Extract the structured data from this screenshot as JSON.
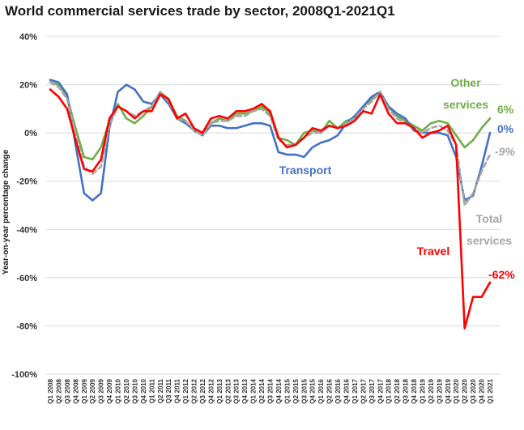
{
  "chart_data": {
    "type": "line",
    "title": "World commercial services trade by sector, 2008Q1-2021Q1",
    "ylabel": "Year-on-year percentage change",
    "xlabel": "",
    "ylim": [
      -100,
      40
    ],
    "yticks": [
      40,
      20,
      0,
      -20,
      -40,
      -60,
      -80,
      -100
    ],
    "ytick_labels": [
      "40%",
      "20%",
      "0%",
      "-20%",
      "-40%",
      "-60%",
      "-80%",
      "-100%"
    ],
    "grid": "horizontal",
    "categories": [
      "Q1 2008",
      "Q2 2008",
      "Q3 2008",
      "Q4 2008",
      "Q1 2009",
      "Q2 2009",
      "Q3 2009",
      "Q4 2009",
      "Q1 2010",
      "Q2 2010",
      "Q3 2010",
      "Q4 2010",
      "Q1 2011",
      "Q2 2011",
      "Q3 2011",
      "Q4 2011",
      "Q1 2012",
      "Q2 2012",
      "Q3 2012",
      "Q4 2012",
      "Q1 2013",
      "Q2 2013",
      "Q3 2013",
      "Q4 2013",
      "Q1 2014",
      "Q2 2014",
      "Q3 2014",
      "Q4 2014",
      "Q1 2015",
      "Q2 2015",
      "Q3 2015",
      "Q4 2015",
      "Q1 2016",
      "Q2 2016",
      "Q3 2016",
      "Q4 2016",
      "Q1 2017",
      "Q2 2017",
      "Q3 2017",
      "Q4 2017",
      "Q1 2018",
      "Q2 2018",
      "Q3 2018",
      "Q4 2018",
      "Q1 2019",
      "Q2 2019",
      "Q3 2019",
      "Q4 2019",
      "Q1 2020",
      "Q2 2020",
      "Q3 2020",
      "Q4 2020",
      "Q1 2021"
    ],
    "series": [
      {
        "name": "Other services",
        "color": "#70AD47",
        "values": [
          21,
          20,
          15,
          2,
          -10,
          -11,
          -6,
          5,
          12,
          6,
          4,
          7,
          11,
          17,
          14,
          7,
          5,
          1,
          -1,
          4,
          6,
          5,
          8,
          8,
          9,
          11,
          8,
          -2,
          -3,
          -5,
          0,
          1,
          0,
          5,
          2,
          5,
          6,
          11,
          14,
          17,
          11,
          7,
          5,
          3,
          1,
          4,
          5,
          4,
          -1,
          -6,
          -3,
          2,
          6
        ]
      },
      {
        "name": "Transport",
        "color": "#4472C4",
        "values": [
          22,
          21,
          16,
          -5,
          -25,
          -28,
          -25,
          2,
          17,
          20,
          18,
          13,
          12,
          16,
          12,
          6,
          4,
          1,
          -1,
          3,
          3,
          2,
          2,
          3,
          4,
          4,
          3,
          -8,
          -9,
          -9,
          -10,
          -6,
          -4,
          -3,
          -1,
          4,
          7,
          11,
          15,
          17,
          11,
          8,
          6,
          1,
          0,
          0,
          0,
          -1,
          -10,
          -28,
          -26,
          -14,
          0
        ]
      },
      {
        "name": "Total services",
        "color": "#A6A6A6",
        "dashed": true,
        "values": [
          21,
          19,
          14,
          0,
          -14,
          -17,
          -14,
          3,
          11,
          9,
          7,
          9,
          11,
          17,
          13,
          6,
          5,
          1,
          -1,
          4,
          5,
          5,
          7,
          7,
          9,
          10,
          7,
          -3,
          -5,
          -5,
          -2,
          0,
          0,
          3,
          2,
          4,
          6,
          10,
          13,
          17,
          10,
          6,
          4,
          2,
          0,
          2,
          3,
          1,
          -5,
          -30,
          -25,
          -16,
          -9
        ]
      },
      {
        "name": "Travel",
        "color": "#FF0000",
        "values": [
          18,
          15,
          10,
          -3,
          -15,
          -16,
          -11,
          6,
          11,
          9,
          6,
          9,
          9,
          16,
          14,
          6,
          8,
          2,
          0,
          6,
          7,
          6,
          9,
          9,
          10,
          12,
          9,
          -2,
          -6,
          -5,
          -2,
          2,
          1,
          3,
          2,
          3,
          5,
          9,
          8,
          16,
          8,
          4,
          4,
          2,
          -2,
          0,
          1,
          3,
          -5,
          -81,
          -68,
          -68,
          -62
        ]
      }
    ],
    "annotations": {
      "other_label_1": "Other",
      "other_label_2": "services",
      "other_value": "6%",
      "transport_label": "Transport",
      "transport_value": "0%",
      "total_value": "-9%",
      "total_label_1": "Total",
      "total_label_2": "services",
      "travel_label": "Travel",
      "travel_value": "-62%"
    }
  }
}
